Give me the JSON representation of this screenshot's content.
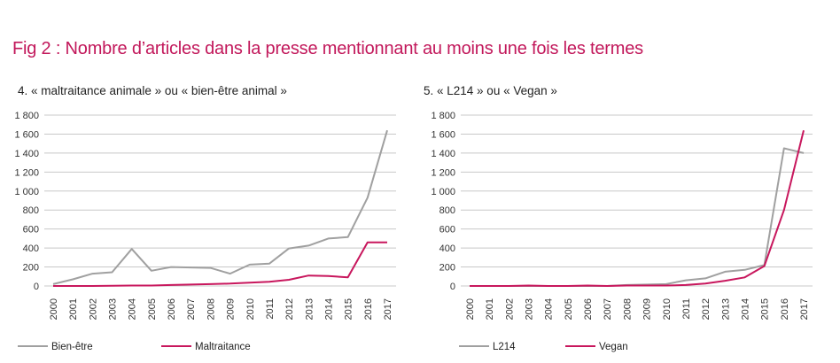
{
  "figure": {
    "title": "Fig 2 : Nombre d’articles dans la presse mentionnant au moins une fois les termes"
  },
  "colors": {
    "grey_series": "#a0a0a0",
    "pink_series": "#c8175d",
    "grid": "#c8c8c8"
  },
  "chart_data": [
    {
      "type": "line",
      "title": "4. « maltraitance animale » ou « bien-être animal »",
      "x": [
        "2000",
        "2001",
        "2002",
        "2003",
        "2004",
        "2005",
        "2006",
        "2007",
        "2008",
        "2009",
        "2010",
        "2011",
        "2012",
        "2013",
        "2014",
        "2015",
        "2016",
        "2017"
      ],
      "ylim": [
        0,
        1800
      ],
      "yticks": [
        "0",
        "200",
        "400",
        "600",
        "800",
        "1 000",
        "1 200",
        "1 400",
        "1 600",
        "1 800"
      ],
      "grid": true,
      "legend": "bottom-left",
      "series": [
        {
          "name": "Bien-être",
          "color": "#a0a0a0",
          "values": [
            20,
            70,
            130,
            145,
            390,
            160,
            200,
            195,
            190,
            130,
            225,
            235,
            395,
            425,
            500,
            515,
            930,
            1640
          ]
        },
        {
          "name": "Maltraitance",
          "color": "#c8175d",
          "values": [
            0,
            0,
            0,
            2,
            5,
            5,
            10,
            15,
            20,
            25,
            35,
            45,
            65,
            110,
            105,
            90,
            460,
            460
          ]
        }
      ]
    },
    {
      "type": "line",
      "title": "5. « L214 » ou « Vegan »",
      "x": [
        "2000",
        "2001",
        "2002",
        "2003",
        "2004",
        "2005",
        "2006",
        "2007",
        "2008",
        "2009",
        "2010",
        "2011",
        "2012",
        "2013",
        "2014",
        "2015",
        "2016",
        "2017"
      ],
      "ylim": [
        0,
        1800
      ],
      "yticks": [
        "0",
        "200",
        "400",
        "600",
        "800",
        "1 000",
        "1 200",
        "1 400",
        "1 600",
        "1 800"
      ],
      "grid": true,
      "legend": "bottom-left",
      "series": [
        {
          "name": "L214",
          "color": "#a0a0a0",
          "values": [
            0,
            0,
            0,
            0,
            0,
            0,
            0,
            0,
            10,
            15,
            20,
            60,
            80,
            150,
            170,
            220,
            1450,
            1400
          ]
        },
        {
          "name": "Vegan",
          "color": "#c8175d",
          "values": [
            0,
            0,
            0,
            5,
            0,
            0,
            5,
            0,
            5,
            5,
            5,
            10,
            25,
            55,
            90,
            210,
            800,
            1640
          ]
        }
      ]
    }
  ]
}
